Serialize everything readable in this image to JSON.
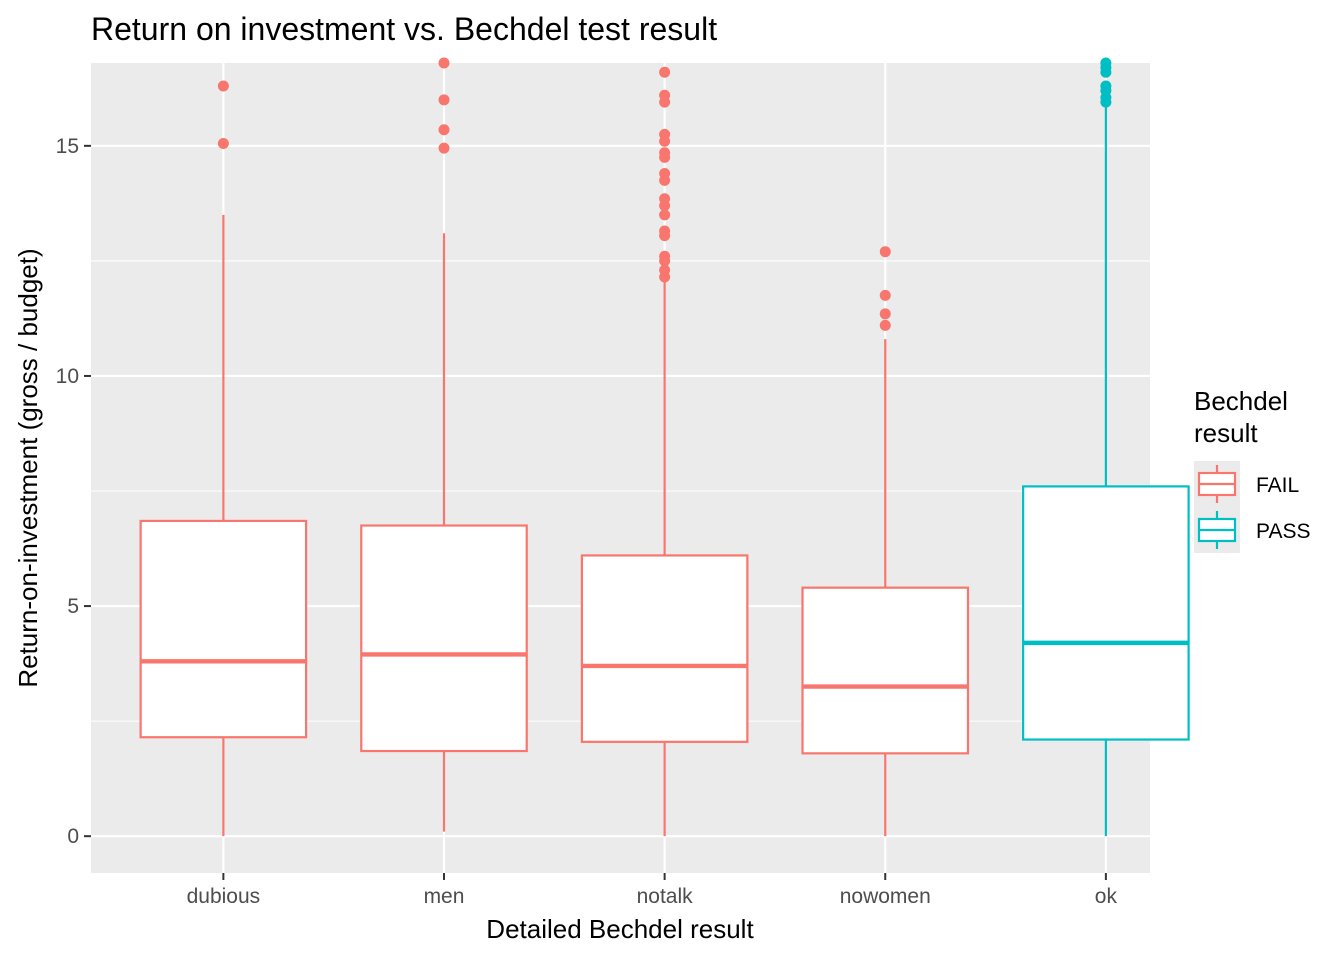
{
  "chart_data": {
    "type": "boxplot",
    "title": "Return on investment vs. Bechdel test result",
    "xlabel": "Detailed Bechdel result",
    "ylabel": "Return-on-investment (gross / budget)",
    "ylim": [
      -0.8,
      16.8
    ],
    "yticks": [
      0,
      5,
      10,
      15
    ],
    "ytick_labels": [
      "0",
      "5",
      "10",
      "15"
    ],
    "categories": [
      "dubious",
      "men",
      "notalk",
      "nowomen",
      "ok"
    ],
    "grid": true,
    "legend": {
      "title_lines": [
        "Bechdel",
        "result"
      ],
      "position": "right",
      "entries": [
        {
          "label": "FAIL",
          "color": "#F8766D"
        },
        {
          "label": "PASS",
          "color": "#00BFC4"
        }
      ]
    },
    "colors": {
      "FAIL": "#F8766D",
      "PASS": "#00BFC4",
      "panel": "#EBEBEB",
      "grid": "#FFFFFF"
    },
    "boxes": [
      {
        "category": "dubious",
        "group": "FAIL",
        "whisker_low": 0.0,
        "q1": 2.15,
        "median": 3.8,
        "q3": 6.85,
        "whisker_high": 13.5,
        "outliers": [
          15.05,
          16.3
        ]
      },
      {
        "category": "men",
        "group": "FAIL",
        "whisker_low": 0.1,
        "q1": 1.85,
        "median": 3.95,
        "q3": 6.75,
        "whisker_high": 13.1,
        "outliers": [
          14.95,
          15.35,
          16.0,
          16.8
        ]
      },
      {
        "category": "notalk",
        "group": "FAIL",
        "whisker_low": 0.0,
        "q1": 2.05,
        "median": 3.7,
        "q3": 6.1,
        "whisker_high": 12.05,
        "outliers": [
          12.15,
          12.3,
          12.5,
          12.6,
          13.05,
          13.15,
          13.5,
          13.7,
          13.85,
          14.25,
          14.4,
          14.75,
          14.85,
          15.1,
          15.25,
          15.95,
          16.1,
          16.6
        ]
      },
      {
        "category": "nowomen",
        "group": "FAIL",
        "whisker_low": 0.0,
        "q1": 1.8,
        "median": 3.25,
        "q3": 5.4,
        "whisker_high": 10.8,
        "outliers": [
          11.1,
          11.35,
          11.75,
          12.7
        ]
      },
      {
        "category": "ok",
        "group": "PASS",
        "whisker_low": 0.0,
        "q1": 2.1,
        "median": 4.2,
        "q3": 7.6,
        "whisker_high": 15.85,
        "outliers": [
          15.95,
          16.05,
          16.2,
          16.3,
          16.6,
          16.7,
          16.8
        ]
      }
    ]
  }
}
